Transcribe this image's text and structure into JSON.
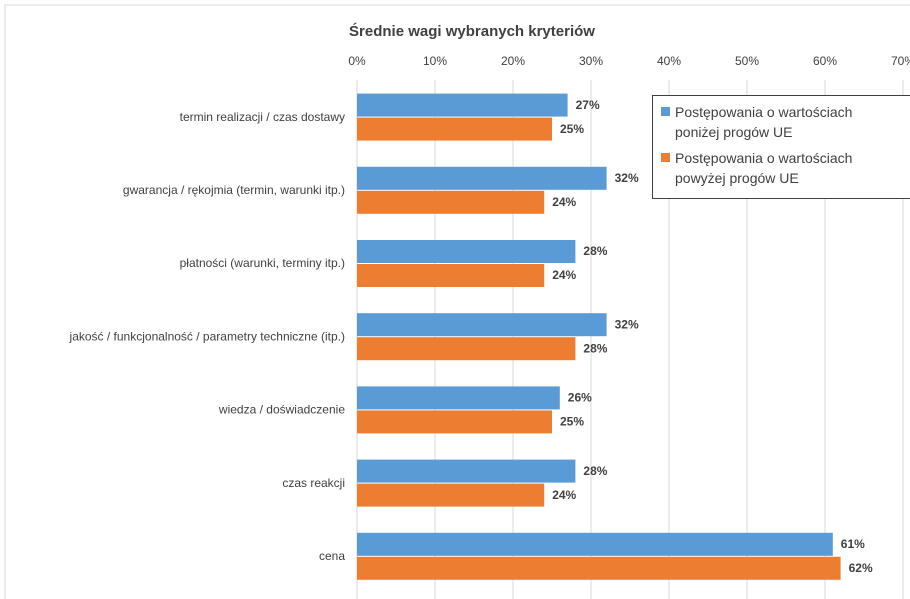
{
  "chart_data": {
    "type": "bar",
    "orientation": "horizontal",
    "title": "Średnie wagi wybranych kryteriów",
    "categories": [
      "termin realizacji / czas dostawy",
      "gwarancja / rękojmia (termin, warunki itp.)",
      "płatności (warunki, terminy itp.)",
      "jakość / funkcjonalność / parametry techniczne (itp.)",
      "wiedza / doświadczenie",
      "czas reakcji",
      "cena"
    ],
    "series": [
      {
        "name": "Postępowania o wartościach poniżej progów UE",
        "color": "#5b9bd5",
        "values": [
          27,
          32,
          28,
          32,
          26,
          28,
          61
        ],
        "value_labels": [
          "27%",
          "32%",
          "28%",
          "32%",
          "26%",
          "28%",
          "61%"
        ]
      },
      {
        "name": "Postępowania o wartościach powyżej progów UE",
        "color": "#ed7d31",
        "values": [
          25,
          24,
          24,
          28,
          25,
          24,
          62
        ],
        "value_labels": [
          "25%",
          "24%",
          "24%",
          "28%",
          "25%",
          "24%",
          "62%"
        ]
      }
    ],
    "xlim": [
      0,
      70
    ],
    "xticks": [
      {
        "value": 0,
        "label": "0%"
      },
      {
        "value": 10,
        "label": "10%"
      },
      {
        "value": 20,
        "label": "20%"
      },
      {
        "value": 30,
        "label": "30%"
      },
      {
        "value": 40,
        "label": "40%"
      },
      {
        "value": 50,
        "label": "50%"
      },
      {
        "value": 60,
        "label": "60%"
      },
      {
        "value": 70,
        "label": "70%"
      }
    ],
    "grid": true,
    "legend": "upper right"
  }
}
